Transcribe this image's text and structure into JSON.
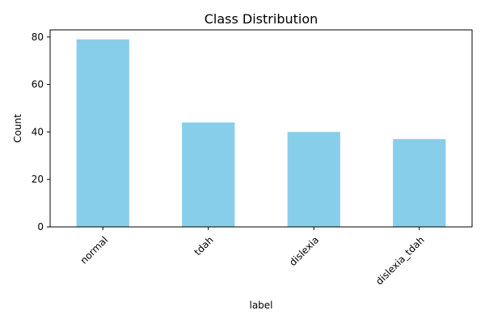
{
  "chart_data": {
    "type": "bar",
    "title": "Class Distribution",
    "xlabel": "label",
    "ylabel": "Count",
    "categories": [
      "normal",
      "tdah",
      "dislexia",
      "dislexia_tdah"
    ],
    "values": [
      79,
      44,
      40,
      37
    ],
    "ylim": [
      0,
      83
    ],
    "yticks": [
      0,
      20,
      40,
      60,
      80
    ],
    "bar_color": "#87ceeb",
    "grid": false,
    "legend": "none"
  }
}
